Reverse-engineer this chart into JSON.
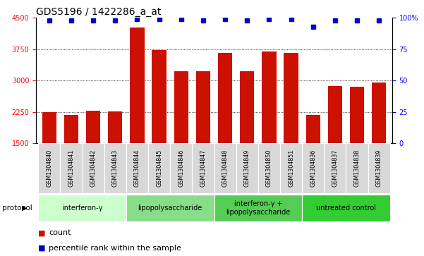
{
  "title": "GDS5196 / 1422286_a_at",
  "samples": [
    "GSM1304840",
    "GSM1304841",
    "GSM1304842",
    "GSM1304843",
    "GSM1304844",
    "GSM1304845",
    "GSM1304846",
    "GSM1304847",
    "GSM1304848",
    "GSM1304849",
    "GSM1304850",
    "GSM1304851",
    "GSM1304836",
    "GSM1304837",
    "GSM1304838",
    "GSM1304839"
  ],
  "bar_values": [
    2250,
    2180,
    2280,
    2260,
    4270,
    3730,
    3230,
    3220,
    3660,
    3230,
    3700,
    3660,
    2180,
    2870,
    2860,
    2950
  ],
  "percentile_values": [
    98,
    98,
    98,
    98,
    99,
    99,
    99,
    98,
    99,
    98,
    99,
    99,
    93,
    98,
    98,
    98
  ],
  "bar_color": "#cc1100",
  "dot_color": "#0000cc",
  "ylim_left": [
    1500,
    4500
  ],
  "ylim_right": [
    0,
    100
  ],
  "yticks_left": [
    1500,
    2250,
    3000,
    3750,
    4500
  ],
  "yticks_right": [
    0,
    25,
    50,
    75,
    100
  ],
  "yticklabels_right": [
    "0",
    "25",
    "50",
    "75",
    "100%"
  ],
  "groups": [
    {
      "label": "interferon-γ",
      "start": 0,
      "end": 4,
      "color": "#ccffcc"
    },
    {
      "label": "lipopolysaccharide",
      "start": 4,
      "end": 8,
      "color": "#88dd88"
    },
    {
      "label": "interferon-γ +\nlipopolysaccharide",
      "start": 8,
      "end": 12,
      "color": "#55cc55"
    },
    {
      "label": "untreated control",
      "start": 12,
      "end": 16,
      "color": "#33cc33"
    }
  ],
  "protocol_label": "protocol",
  "legend_count_label": "count",
  "legend_percentile_label": "percentile rank within the sample",
  "tick_area_color": "#d8d8d8",
  "title_fontsize": 10,
  "tick_fontsize": 7,
  "group_fontsize": 7,
  "legend_fontsize": 8
}
